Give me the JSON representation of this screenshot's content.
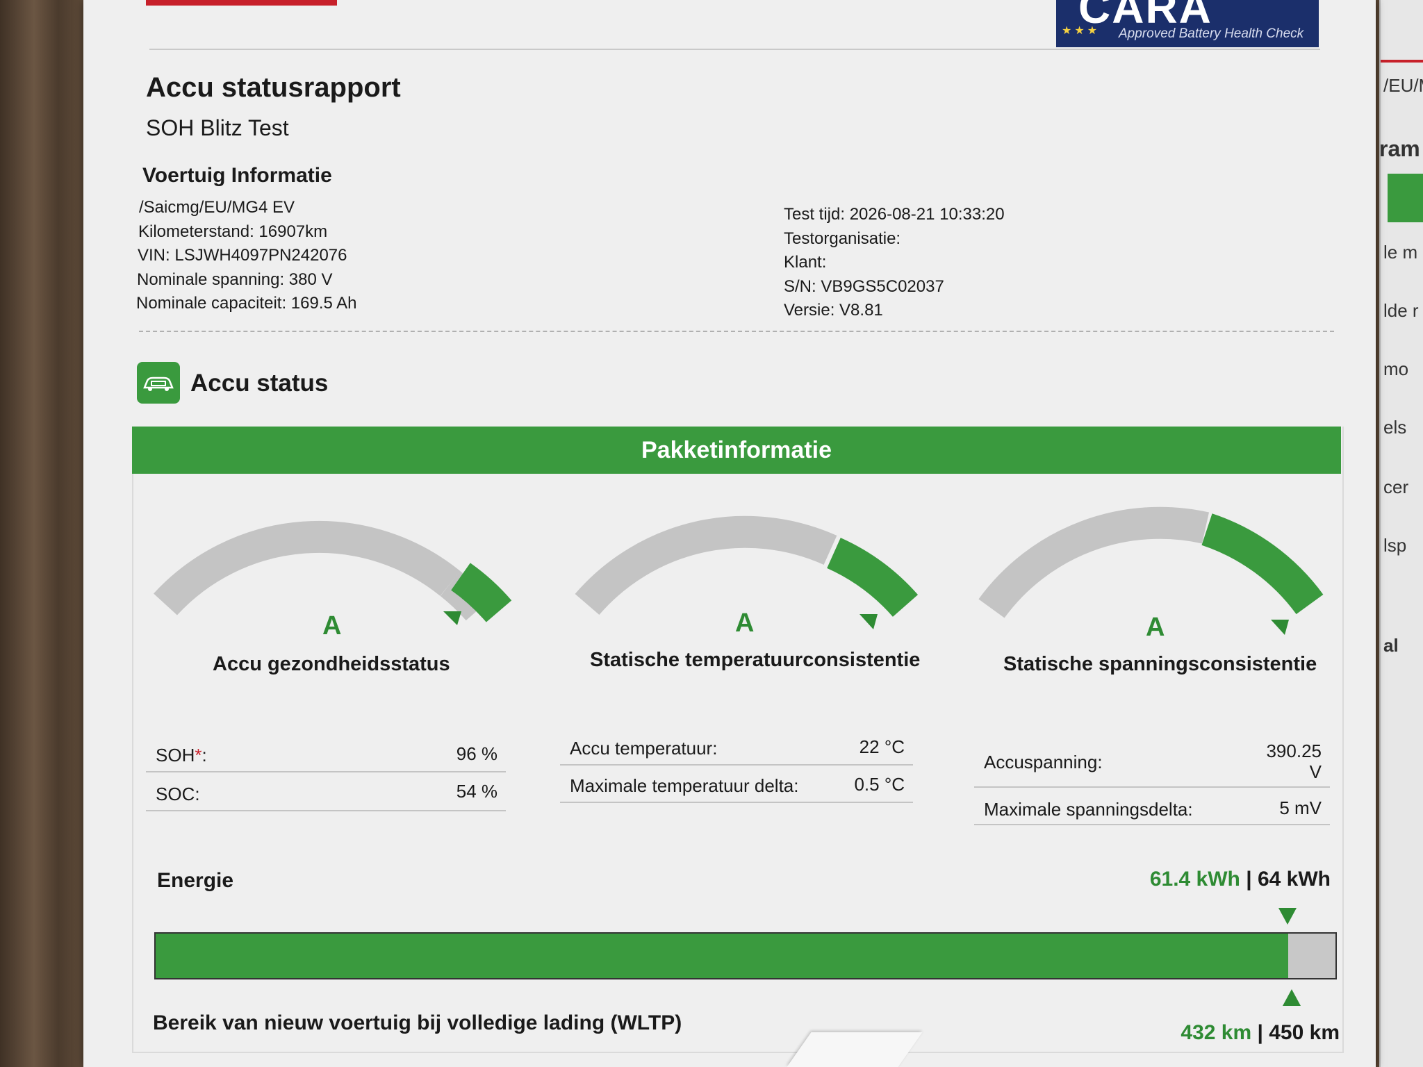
{
  "report": {
    "title": "Accu statusrapport",
    "subtitle": "SOH Blitz Test",
    "logo": {
      "name": "CARA",
      "tagline": "Approved Battery Health Check"
    }
  },
  "vehicle": {
    "heading": "Voertuig Informatie",
    "left": [
      "/Saicmg/EU/MG4 EV",
      "Kilometerstand: 16907km",
      "VIN: LSJWH4097PN242076",
      "Nominale spanning: 380 V",
      "Nominale capaciteit: 169.5 Ah"
    ],
    "right": [
      "Test tijd: 2026-08-21 10:33:20",
      "Testorganisatie:",
      "Klant:",
      "S/N: VB9GS5C02037",
      "Versie: V8.81"
    ]
  },
  "status": {
    "title": "Accu status",
    "icon": "battery-car-icon",
    "package_header": "Pakketinformatie"
  },
  "gauges": [
    {
      "grade": "A",
      "label": "Accu gezondheidsstatus",
      "rows": [
        {
          "key": "SOH",
          "star": "*",
          "suffix": ":",
          "value": "96 %"
        },
        {
          "key": "SOC:",
          "star": "",
          "suffix": "",
          "value": "54 %"
        }
      ]
    },
    {
      "grade": "A",
      "label": "Statische temperatuurconsistentie",
      "rows": [
        {
          "key": "Accu temperatuur:",
          "star": "",
          "suffix": "",
          "value": "22 °C"
        },
        {
          "key": "Maximale temperatuur delta:",
          "star": "",
          "suffix": "",
          "value": "0.5 °C"
        }
      ]
    },
    {
      "grade": "A",
      "label": "Statische spanningsconsistentie",
      "rows": [
        {
          "key": "Accuspanning:",
          "star": "",
          "suffix": "",
          "value": "390.25 V"
        },
        {
          "key": "Maximale spanningsdelta:",
          "star": "",
          "suffix": "",
          "value": "5 mV"
        }
      ]
    }
  ],
  "energy": {
    "label": "Energie",
    "current": "61.4 kWh",
    "separator": " | ",
    "total": "64 kWh",
    "fill_fraction": 0.96
  },
  "range": {
    "label": "Bereik van nieuw voertuig bij volledige lading (WLTP)",
    "current": "432 km",
    "separator": " | ",
    "total": "450 km"
  },
  "side_sheet_fragments": [
    "/EU/M",
    "ram",
    "le m",
    "lde r",
    "mo",
    "els",
    "cer",
    "lsp",
    "al"
  ],
  "colors": {
    "accent_green": "#3a9a3e",
    "gauge_grey": "#c4c4c4",
    "logo_blue": "#1b2f6b",
    "brand_red": "#c7202a"
  }
}
